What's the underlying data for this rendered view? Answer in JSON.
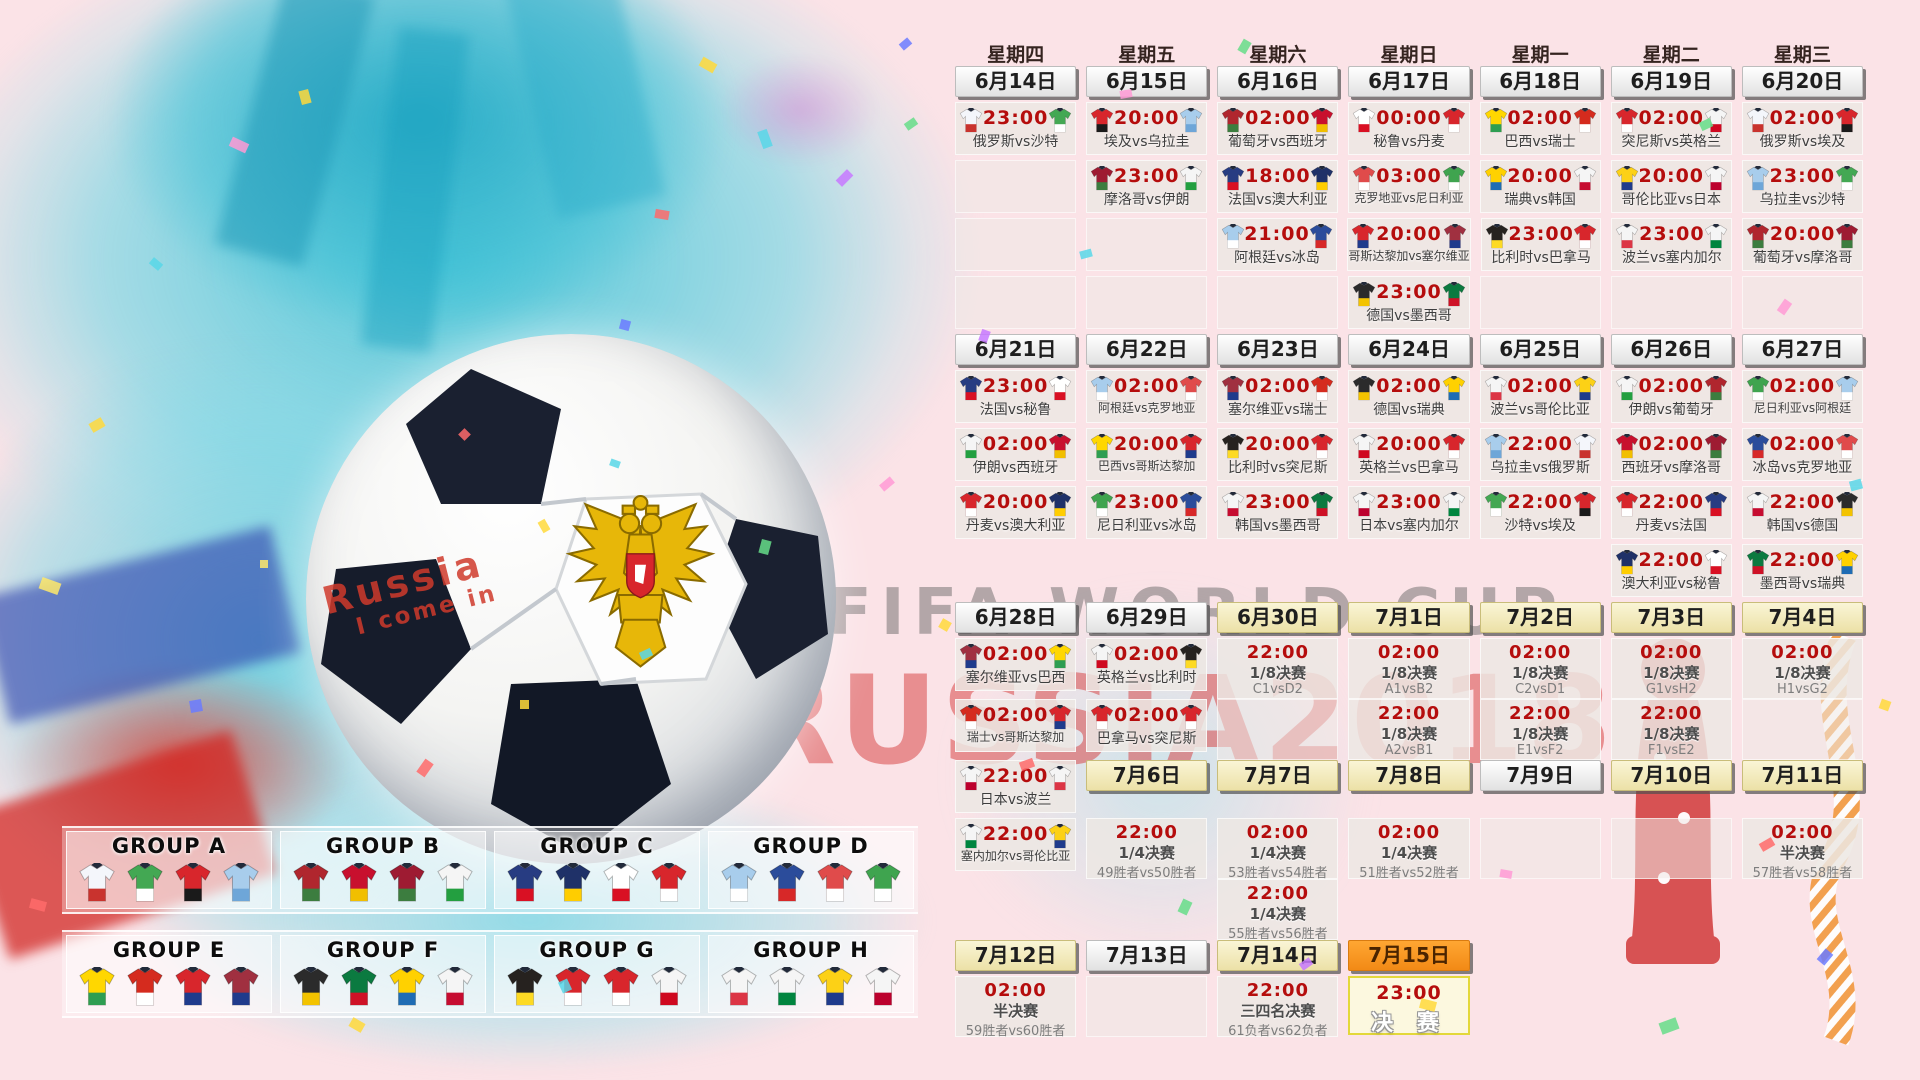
{
  "watermark": {
    "line1": "FIFA WORLD CUP",
    "line2": "RUSSIA2018"
  },
  "ball": {
    "handwriting_line1": "Russia",
    "handwriting_line2": "I come in"
  },
  "colors": {
    "background_pink": "#fbe3e7",
    "watercolor_teal": "#4ac3d6",
    "time_red": "#b50d0d",
    "date_cream": "#f0ecc5",
    "date_orange": "#f7941d",
    "watermark_gray": "#5c5c5c",
    "watermark_red": "#d53a3a"
  },
  "team_colors": {
    "俄罗斯": [
      "#f4f6fb",
      "#c9332e"
    ],
    "沙特": [
      "#43a853",
      "#ffffff"
    ],
    "埃及": [
      "#d8262c",
      "#1a1a1a"
    ],
    "乌拉圭": [
      "#a8cdec",
      "#6ea6d8"
    ],
    "葡萄牙": [
      "#b0262e",
      "#3c7d3f"
    ],
    "西班牙": [
      "#c8102e",
      "#f1bf00"
    ],
    "秘鲁": [
      "#ffffff",
      "#d91023"
    ],
    "丹麦": [
      "#d8262c",
      "#ffffff"
    ],
    "巴西": [
      "#ffd700",
      "#2e9e52"
    ],
    "瑞士": [
      "#d52b1e",
      "#ffffff"
    ],
    "突尼斯": [
      "#d8262c",
      "#ffffff"
    ],
    "英格兰": [
      "#f5f5f5",
      "#cf081f"
    ],
    "摩洛哥": [
      "#9e1b32",
      "#3c7d3f"
    ],
    "伊朗": [
      "#f5f5f5",
      "#239f40"
    ],
    "法国": [
      "#273c82",
      "#d91023"
    ],
    "澳大利亚": [
      "#1f3168",
      "#ffcd00"
    ],
    "克罗地亚": [
      "#e04b4b",
      "#ffffff"
    ],
    "尼日利亚": [
      "#3fa44f",
      "#ffffff"
    ],
    "瑞典": [
      "#ffd100",
      "#1f6cb4"
    ],
    "韩国": [
      "#f5f5f5",
      "#c60c30"
    ],
    "哥伦比亚": [
      "#fcd116",
      "#1f3b8c"
    ],
    "日本": [
      "#f5f5f5",
      "#bc002d"
    ],
    "哥斯达黎加": [
      "#d8262c",
      "#1f3b8c"
    ],
    "塞尔维亚": [
      "#a03040",
      "#1f3b8c"
    ],
    "阿根廷": [
      "#a8cdec",
      "#ffffff"
    ],
    "冰岛": [
      "#2b4c9b",
      "#d72828"
    ],
    "比利时": [
      "#26221f",
      "#fdda24"
    ],
    "巴拿马": [
      "#d8262c",
      "#ffffff"
    ],
    "波兰": [
      "#f5f5f5",
      "#dc3545"
    ],
    "塞内加尔": [
      "#f5f5f5",
      "#00853f"
    ],
    "德国": [
      "#2b2b2b",
      "#f3c300"
    ],
    "墨西哥": [
      "#0b7a40",
      "#ce1126"
    ]
  },
  "schedule": {
    "weekdays": [
      "星期四",
      "星期五",
      "星期六",
      "星期日",
      "星期一",
      "星期二",
      "星期三"
    ],
    "bands": [
      {
        "type": "dates",
        "cells": [
          {
            "kind": "date",
            "label": "6月14日",
            "style": "white"
          },
          {
            "kind": "date",
            "label": "6月15日",
            "style": "white"
          },
          {
            "kind": "date",
            "label": "6月16日",
            "style": "white"
          },
          {
            "kind": "date",
            "label": "6月17日",
            "style": "white"
          },
          {
            "kind": "date",
            "label": "6月18日",
            "style": "white"
          },
          {
            "kind": "date",
            "label": "6月19日",
            "style": "white"
          },
          {
            "kind": "date",
            "label": "6月20日",
            "style": "white"
          }
        ]
      },
      {
        "type": "row",
        "cells": [
          {
            "kind": "match",
            "time": "23:00",
            "home": "俄罗斯",
            "away": "沙特",
            "label": "俄罗斯vs沙特"
          },
          {
            "kind": "match",
            "time": "20:00",
            "home": "埃及",
            "away": "乌拉圭",
            "label": "埃及vs乌拉圭"
          },
          {
            "kind": "match",
            "time": "02:00",
            "home": "葡萄牙",
            "away": "西班牙",
            "label": "葡萄牙vs西班牙"
          },
          {
            "kind": "match",
            "time": "00:00",
            "home": "秘鲁",
            "away": "丹麦",
            "label": "秘鲁vs丹麦"
          },
          {
            "kind": "match",
            "time": "02:00",
            "home": "巴西",
            "away": "瑞士",
            "label": "巴西vs瑞士"
          },
          {
            "kind": "match",
            "time": "02:00",
            "home": "突尼斯",
            "away": "英格兰",
            "label": "突尼斯vs英格兰"
          },
          {
            "kind": "match",
            "time": "02:00",
            "home": "俄罗斯",
            "away": "埃及",
            "label": "俄罗斯vs埃及"
          }
        ]
      },
      {
        "type": "row",
        "cells": [
          {
            "kind": "panel"
          },
          {
            "kind": "match",
            "time": "23:00",
            "home": "摩洛哥",
            "away": "伊朗",
            "label": "摩洛哥vs伊朗"
          },
          {
            "kind": "match",
            "time": "18:00",
            "home": "法国",
            "away": "澳大利亚",
            "label": "法国vs澳大利亚"
          },
          {
            "kind": "match",
            "time": "03:00",
            "home": "克罗地亚",
            "away": "尼日利亚",
            "label": "克罗地亚vs尼日利亚"
          },
          {
            "kind": "match",
            "time": "20:00",
            "home": "瑞典",
            "away": "韩国",
            "label": "瑞典vs韩国"
          },
          {
            "kind": "match",
            "time": "20:00",
            "home": "哥伦比亚",
            "away": "日本",
            "label": "哥伦比亚vs日本"
          },
          {
            "kind": "match",
            "time": "23:00",
            "home": "乌拉圭",
            "away": "沙特",
            "label": "乌拉圭vs沙特"
          }
        ]
      },
      {
        "type": "row",
        "cells": [
          {
            "kind": "panel"
          },
          {
            "kind": "panel"
          },
          {
            "kind": "match",
            "time": "21:00",
            "home": "阿根廷",
            "away": "冰岛",
            "label": "阿根廷vs冰岛"
          },
          {
            "kind": "match",
            "time": "20:00",
            "home": "哥斯达黎加",
            "away": "塞尔维亚",
            "label": "哥斯达黎加vs塞尔维亚"
          },
          {
            "kind": "match",
            "time": "23:00",
            "home": "比利时",
            "away": "巴拿马",
            "label": "比利时vs巴拿马"
          },
          {
            "kind": "match",
            "time": "23:00",
            "home": "波兰",
            "away": "塞内加尔",
            "label": "波兰vs塞内加尔"
          },
          {
            "kind": "match",
            "time": "20:00",
            "home": "葡萄牙",
            "away": "摩洛哥",
            "label": "葡萄牙vs摩洛哥"
          }
        ]
      },
      {
        "type": "row",
        "cells": [
          {
            "kind": "panel"
          },
          {
            "kind": "panel"
          },
          {
            "kind": "panel"
          },
          {
            "kind": "match",
            "time": "23:00",
            "home": "德国",
            "away": "墨西哥",
            "label": "德国vs墨西哥"
          },
          {
            "kind": "panel"
          },
          {
            "kind": "panel"
          },
          {
            "kind": "panel"
          }
        ]
      },
      {
        "type": "dates",
        "cells": [
          {
            "kind": "date",
            "label": "6月21日",
            "style": "white"
          },
          {
            "kind": "date",
            "label": "6月22日",
            "style": "white"
          },
          {
            "kind": "date",
            "label": "6月23日",
            "style": "white"
          },
          {
            "kind": "date",
            "label": "6月24日",
            "style": "white"
          },
          {
            "kind": "date",
            "label": "6月25日",
            "style": "white"
          },
          {
            "kind": "date",
            "label": "6月26日",
            "style": "white"
          },
          {
            "kind": "date",
            "label": "6月27日",
            "style": "white"
          }
        ]
      },
      {
        "type": "row",
        "cells": [
          {
            "kind": "match",
            "time": "23:00",
            "home": "法国",
            "away": "秘鲁",
            "label": "法国vs秘鲁"
          },
          {
            "kind": "match",
            "time": "02:00",
            "home": "阿根廷",
            "away": "克罗地亚",
            "label": "阿根廷vs克罗地亚"
          },
          {
            "kind": "match",
            "time": "02:00",
            "home": "塞尔维亚",
            "away": "瑞士",
            "label": "塞尔维亚vs瑞士"
          },
          {
            "kind": "match",
            "time": "02:00",
            "home": "德国",
            "away": "瑞典",
            "label": "德国vs瑞典"
          },
          {
            "kind": "match",
            "time": "02:00",
            "home": "波兰",
            "away": "哥伦比亚",
            "label": "波兰vs哥伦比亚"
          },
          {
            "kind": "match",
            "time": "02:00",
            "home": "伊朗",
            "away": "葡萄牙",
            "label": "伊朗vs葡萄牙"
          },
          {
            "kind": "match",
            "time": "02:00",
            "home": "尼日利亚",
            "away": "阿根廷",
            "label": "尼日利亚vs阿根廷"
          }
        ]
      },
      {
        "type": "row",
        "cells": [
          {
            "kind": "match",
            "time": "02:00",
            "home": "伊朗",
            "away": "西班牙",
            "label": "伊朗vs西班牙"
          },
          {
            "kind": "match",
            "time": "20:00",
            "home": "巴西",
            "away": "哥斯达黎加",
            "label": "巴西vs哥斯达黎加"
          },
          {
            "kind": "match",
            "time": "20:00",
            "home": "比利时",
            "away": "突尼斯",
            "label": "比利时vs突尼斯"
          },
          {
            "kind": "match",
            "time": "20:00",
            "home": "英格兰",
            "away": "巴拿马",
            "label": "英格兰vs巴拿马"
          },
          {
            "kind": "match",
            "time": "22:00",
            "home": "乌拉圭",
            "away": "俄罗斯",
            "label": "乌拉圭vs俄罗斯"
          },
          {
            "kind": "match",
            "time": "02:00",
            "home": "西班牙",
            "away": "摩洛哥",
            "label": "西班牙vs摩洛哥"
          },
          {
            "kind": "match",
            "time": "02:00",
            "home": "冰岛",
            "away": "克罗地亚",
            "label": "冰岛vs克罗地亚"
          }
        ]
      },
      {
        "type": "row",
        "cells": [
          {
            "kind": "match",
            "time": "20:00",
            "home": "丹麦",
            "away": "澳大利亚",
            "label": "丹麦vs澳大利亚"
          },
          {
            "kind": "match",
            "time": "23:00",
            "home": "尼日利亚",
            "away": "冰岛",
            "label": "尼日利亚vs冰岛"
          },
          {
            "kind": "match",
            "time": "23:00",
            "home": "韩国",
            "away": "墨西哥",
            "label": "韩国vs墨西哥"
          },
          {
            "kind": "match",
            "time": "23:00",
            "home": "日本",
            "away": "塞内加尔",
            "label": "日本vs塞内加尔"
          },
          {
            "kind": "match",
            "time": "22:00",
            "home": "沙特",
            "away": "埃及",
            "label": "沙特vs埃及"
          },
          {
            "kind": "match",
            "time": "22:00",
            "home": "丹麦",
            "away": "法国",
            "label": "丹麦vs法国"
          },
          {
            "kind": "match",
            "time": "22:00",
            "home": "韩国",
            "away": "德国",
            "label": "韩国vs德国"
          }
        ]
      },
      {
        "type": "row",
        "cells": [
          {
            "kind": "none"
          },
          {
            "kind": "none"
          },
          {
            "kind": "none"
          },
          {
            "kind": "none"
          },
          {
            "kind": "none"
          },
          {
            "kind": "match",
            "time": "22:00",
            "home": "澳大利亚",
            "away": "秘鲁",
            "label": "澳大利亚vs秘鲁"
          },
          {
            "kind": "match",
            "time": "22:00",
            "home": "墨西哥",
            "away": "瑞典",
            "label": "墨西哥vs瑞典"
          }
        ]
      },
      {
        "type": "dates",
        "cells": [
          {
            "kind": "date",
            "label": "6月28日",
            "style": "white"
          },
          {
            "kind": "date",
            "label": "6月29日",
            "style": "white"
          },
          {
            "kind": "date",
            "label": "6月30日",
            "style": "cream"
          },
          {
            "kind": "date",
            "label": "7月1日",
            "style": "cream"
          },
          {
            "kind": "date",
            "label": "7月2日",
            "style": "cream"
          },
          {
            "kind": "date",
            "label": "7月3日",
            "style": "cream"
          },
          {
            "kind": "date",
            "label": "7月4日",
            "style": "cream"
          }
        ]
      },
      {
        "type": "ko",
        "cells": [
          {
            "kind": "match",
            "time": "02:00",
            "home": "塞尔维亚",
            "away": "巴西",
            "label": "塞尔维亚vs巴西"
          },
          {
            "kind": "match",
            "time": "02:00",
            "home": "英格兰",
            "away": "比利时",
            "label": "英格兰vs比利时"
          },
          {
            "kind": "ko",
            "time": "22:00",
            "stage": "1/8决赛",
            "pairing": "C1vsD2"
          },
          {
            "kind": "ko",
            "time": "02:00",
            "stage": "1/8决赛",
            "pairing": "A1vsB2"
          },
          {
            "kind": "ko",
            "time": "02:00",
            "stage": "1/8决赛",
            "pairing": "C2vsD1"
          },
          {
            "kind": "ko",
            "time": "02:00",
            "stage": "1/8决赛",
            "pairing": "G1vsH2"
          },
          {
            "kind": "ko",
            "time": "02:00",
            "stage": "1/8决赛",
            "pairing": "H1vsG2"
          }
        ]
      },
      {
        "type": "ko",
        "cells": [
          {
            "kind": "match",
            "time": "02:00",
            "home": "瑞士",
            "away": "哥斯达黎加",
            "label": "瑞士vs哥斯达黎加"
          },
          {
            "kind": "match",
            "time": "02:00",
            "home": "巴拿马",
            "away": "突尼斯",
            "label": "巴拿马vs突尼斯"
          },
          {
            "kind": "panel"
          },
          {
            "kind": "ko",
            "time": "22:00",
            "stage": "1/8决赛",
            "pairing": "A2vsB1"
          },
          {
            "kind": "ko",
            "time": "22:00",
            "stage": "1/8决赛",
            "pairing": "E1vsF2"
          },
          {
            "kind": "ko",
            "time": "22:00",
            "stage": "1/8决赛",
            "pairing": "F1vsE2"
          },
          {
            "kind": "panel"
          }
        ]
      },
      {
        "type": "row",
        "cells": [
          {
            "kind": "match",
            "time": "22:00",
            "home": "日本",
            "away": "波兰",
            "label": "日本vs波兰"
          },
          {
            "kind": "date",
            "label": "7月6日",
            "style": "cream"
          },
          {
            "kind": "date",
            "label": "7月7日",
            "style": "cream"
          },
          {
            "kind": "date",
            "label": "7月8日",
            "style": "cream"
          },
          {
            "kind": "date",
            "label": "7月9日",
            "style": "white"
          },
          {
            "kind": "date",
            "label": "7月10日",
            "style": "cream"
          },
          {
            "kind": "date",
            "label": "7月11日",
            "style": "cream"
          }
        ]
      },
      {
        "type": "ko",
        "cells": [
          {
            "kind": "match",
            "time": "22:00",
            "home": "塞内加尔",
            "away": "哥伦比亚",
            "label": "塞内加尔vs哥伦比亚"
          },
          {
            "kind": "ko",
            "time": "22:00",
            "stage": "1/4决赛",
            "pairing": "49胜者vs50胜者"
          },
          {
            "kind": "ko",
            "time": "02:00",
            "stage": "1/4决赛",
            "pairing": "53胜者vs54胜者"
          },
          {
            "kind": "ko",
            "time": "02:00",
            "stage": "1/4决赛",
            "pairing": "51胜者vs52胜者"
          },
          {
            "kind": "panel"
          },
          {
            "kind": "panel"
          },
          {
            "kind": "ko",
            "time": "02:00",
            "stage": "半决赛",
            "pairing": "57胜者vs58胜者"
          }
        ]
      },
      {
        "type": "ko",
        "cells": [
          {
            "kind": "none"
          },
          {
            "kind": "none"
          },
          {
            "kind": "ko",
            "time": "22:00",
            "stage": "1/4决赛",
            "pairing": "55胜者vs56胜者"
          },
          {
            "kind": "none"
          },
          {
            "kind": "none"
          },
          {
            "kind": "none"
          },
          {
            "kind": "none"
          }
        ]
      },
      {
        "type": "dates",
        "cells": [
          {
            "kind": "date",
            "label": "7月12日",
            "style": "cream"
          },
          {
            "kind": "date",
            "label": "7月13日",
            "style": "white"
          },
          {
            "kind": "date",
            "label": "7月14日",
            "style": "cream"
          },
          {
            "kind": "date",
            "label": "7月15日",
            "style": "orange"
          },
          {
            "kind": "none"
          },
          {
            "kind": "none"
          },
          {
            "kind": "none"
          }
        ]
      },
      {
        "type": "ko",
        "cells": [
          {
            "kind": "ko",
            "time": "02:00",
            "stage": "半决赛",
            "pairing": "59胜者vs60胜者"
          },
          {
            "kind": "panel"
          },
          {
            "kind": "ko",
            "time": "22:00",
            "stage": "三四名决赛",
            "pairing": "61负者vs62负者"
          },
          {
            "kind": "final",
            "time": "23:00",
            "label": "决 赛"
          },
          {
            "kind": "none"
          },
          {
            "kind": "none"
          },
          {
            "kind": "none"
          }
        ]
      }
    ]
  },
  "groups": [
    {
      "name": "GROUP A",
      "teams": [
        "俄罗斯",
        "沙特",
        "埃及",
        "乌拉圭"
      ]
    },
    {
      "name": "GROUP B",
      "teams": [
        "葡萄牙",
        "西班牙",
        "摩洛哥",
        "伊朗"
      ]
    },
    {
      "name": "GROUP C",
      "teams": [
        "法国",
        "澳大利亚",
        "秘鲁",
        "丹麦"
      ]
    },
    {
      "name": "GROUP D",
      "teams": [
        "阿根廷",
        "冰岛",
        "克罗地亚",
        "尼日利亚"
      ]
    },
    {
      "name": "GROUP E",
      "teams": [
        "巴西",
        "瑞士",
        "哥斯达黎加",
        "塞尔维亚"
      ]
    },
    {
      "name": "GROUP F",
      "teams": [
        "德国",
        "墨西哥",
        "瑞典",
        "韩国"
      ]
    },
    {
      "name": "GROUP G",
      "teams": [
        "比利时",
        "巴拿马",
        "突尼斯",
        "英格兰"
      ]
    },
    {
      "name": "GROUP H",
      "teams": [
        "波兰",
        "塞内加尔",
        "哥伦比亚",
        "日本"
      ]
    }
  ]
}
